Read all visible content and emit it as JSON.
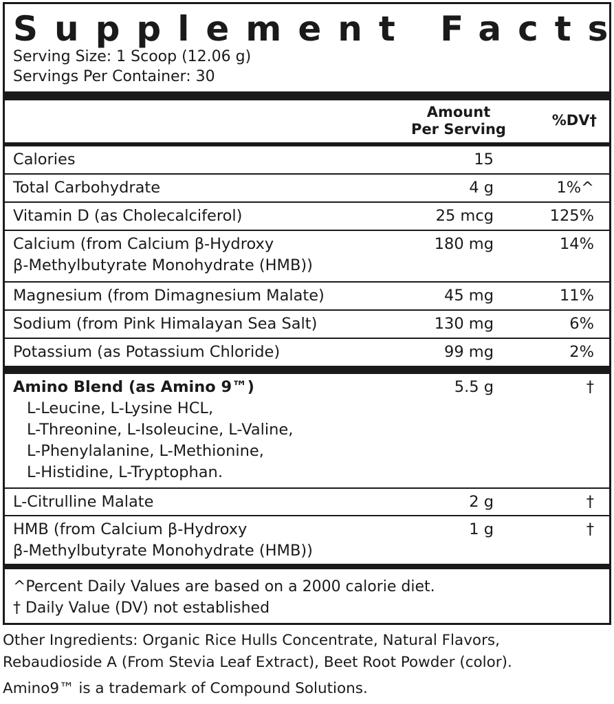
{
  "title": "Supplement Facts",
  "serving_size": "Serving Size: 1 Scoop (12.06 g)",
  "servings_per_container": "Servings Per Container: 30",
  "header": {
    "amount_line1": "Amount",
    "amount_line2": "Per Serving",
    "dv": "%DV†"
  },
  "rows": [
    {
      "name": "Calories",
      "amount": "15",
      "dv": ""
    },
    {
      "name": "Total Carbohydrate",
      "amount": "4 g",
      "dv": "1%^"
    },
    {
      "name": "Vitamin D (as Cholecalciferol)",
      "amount": "25 mcg",
      "dv": "125%"
    },
    {
      "name": "Calcium (from Calcium β-Hydroxy",
      "name2": "β-Methylbutyrate Monohydrate (HMB))",
      "amount": "180 mg",
      "dv": "14%"
    },
    {
      "name": "Magnesium (from Dimagnesium Malate)",
      "amount": "45 mg",
      "dv": "11%"
    },
    {
      "name": "Sodium (from Pink Himalayan Sea Salt)",
      "amount": "130 mg",
      "dv": "6%"
    },
    {
      "name": "Potassium (as Potassium Chloride)",
      "amount": "99 mg",
      "dv": "2%"
    }
  ],
  "blend": {
    "name": "Amino Blend (as Amino 9™)",
    "amount": "5.5 g",
    "dv": "†",
    "ingredients": [
      "L-Leucine, L-Lysine HCL,",
      "L-Threonine, L-Isoleucine, L-Valine,",
      "L-Phenylalanine, L-Methionine,",
      "L-Histidine, L-Tryptophan."
    ]
  },
  "rows2": [
    {
      "name": "L-Citrulline Malate",
      "amount": "2 g",
      "dv": "†"
    },
    {
      "name": "HMB (from Calcium β-Hydroxy",
      "name2": "β-Methylbutyrate Monohydrate (HMB))",
      "amount": "1 g",
      "dv": "†"
    }
  ],
  "footnotes": [
    "^Percent Daily Values are based on a 2000 calorie diet.",
    "† Daily Value (DV) not established"
  ],
  "other_ingredients": [
    "Other Ingredients: Organic Rice Hulls Concentrate, Natural Flavors,",
    "Rebaudioside A (From Stevia Leaf Extract), Beet Root Powder (color)."
  ],
  "trademark": "Amino9™ is a trademark of Compound Solutions."
}
